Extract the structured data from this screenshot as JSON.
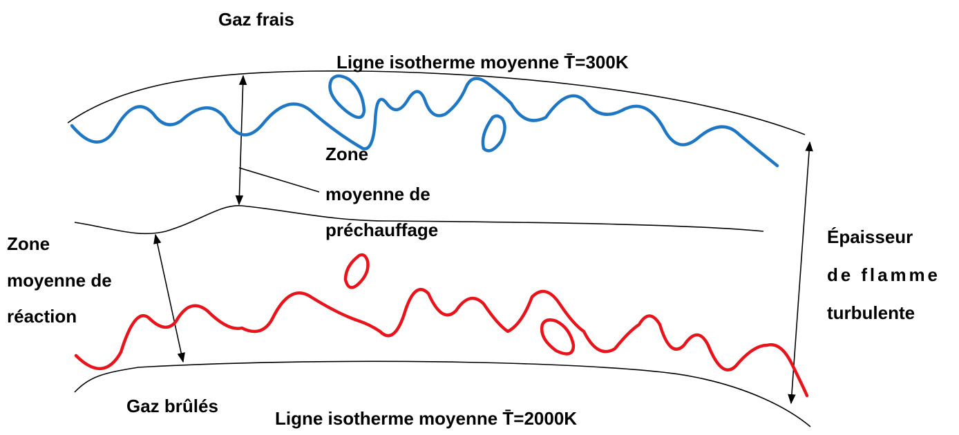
{
  "header": {
    "fresh_gas": "Gaz frais",
    "isotherm_top": "Ligne isotherme moyenne T̄=300K"
  },
  "preheat_zone": {
    "lines": [
      "Zone",
      "moyenne de",
      "préchauffage"
    ]
  },
  "reaction_zone": {
    "lines": [
      "Zone",
      "moyenne de",
      "réaction"
    ]
  },
  "thickness": {
    "lines": [
      "Épaisseur",
      "de flamme",
      "turbulente"
    ]
  },
  "footer": {
    "burnt_gas": "Gaz brûlés",
    "isotherm_bottom": "Ligne isotherme moyenne T̄=2000K"
  }
}
